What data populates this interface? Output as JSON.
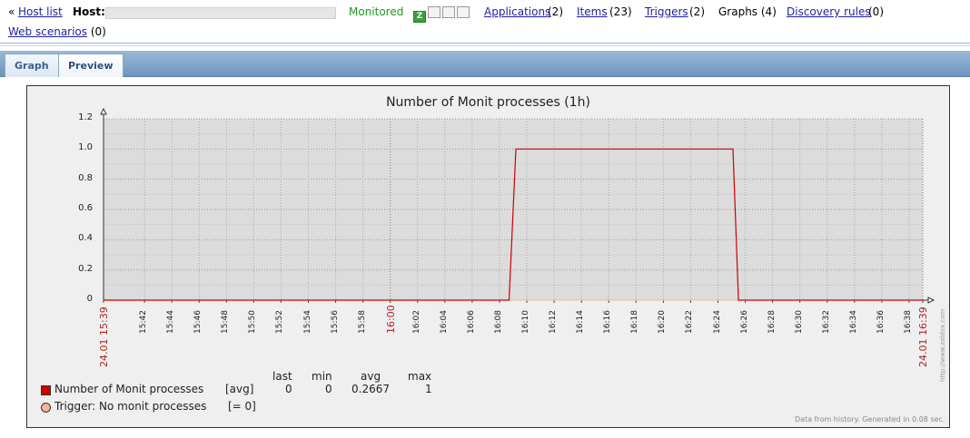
{
  "host_header": {
    "host_list_prefix": "«",
    "host_list_label": "Host list",
    "host_label": "Host:",
    "host_name": "",
    "status": "Monitored",
    "availability": [
      {
        "letter": "Z",
        "state": "available"
      },
      {
        "letter": "",
        "state": "unknown"
      },
      {
        "letter": "",
        "state": "unknown"
      },
      {
        "letter": "",
        "state": "unknown"
      }
    ],
    "applications_label": "Applications",
    "applications_count": "(2)",
    "items_label": "Items",
    "items_count": "(23)",
    "triggers_label": "Triggers",
    "triggers_count": "(2)",
    "graphs_label": "Graphs (4)",
    "discovery_label": "Discovery rules",
    "discovery_count": "(0)",
    "web_label": "Web scenarios",
    "web_count": "(0)"
  },
  "tabs": [
    {
      "label": "Graph",
      "active": false
    },
    {
      "label": "Preview",
      "active": true
    }
  ],
  "graph": {
    "title": "Number of Monit processes (1h)",
    "legend_headers": {
      "last": "last",
      "min": "min",
      "avg": "avg",
      "max": "max"
    },
    "items": [
      {
        "name": "Number of Monit processes",
        "func": "[avg]",
        "last": "0",
        "min": "0",
        "avg": "0.2667",
        "max": "1",
        "color": "#cc0000"
      }
    ],
    "triggers": [
      {
        "name": "Trigger: No monit processes",
        "condition": "[= 0]",
        "color": "#f5b59e"
      }
    ],
    "footer": "Data from history. Generated in 0.08 sec.",
    "watermark": "http://www.zabbix.com"
  },
  "chart_data": {
    "type": "line",
    "title": "Number of Monit processes (1h)",
    "xlabel": "",
    "ylabel": "",
    "ylim": [
      0,
      1.2
    ],
    "y_ticks": [
      "0",
      "0.2",
      "0.4",
      "0.6",
      "0.8",
      "1.0",
      "1.2"
    ],
    "x_ticks": [
      "24.01 15:39",
      "15:42",
      "15:44",
      "15:46",
      "15:48",
      "15:50",
      "15:52",
      "15:54",
      "15:56",
      "15:58",
      "16:00",
      "16:02",
      "16:04",
      "16:06",
      "16:08",
      "16:10",
      "16:12",
      "16:14",
      "16:16",
      "16:18",
      "16:20",
      "16:22",
      "16:24",
      "16:26",
      "16:28",
      "16:30",
      "16:32",
      "16:34",
      "16:36",
      "16:38",
      "24.01 16:39"
    ],
    "x_range": [
      "15:39",
      "16:39"
    ],
    "grid": true,
    "series": [
      {
        "name": "Number of Monit processes",
        "color": "#cc0000",
        "x": [
          "15:39",
          "16:08.7",
          "16:09.2",
          "16:25.1",
          "16:25.5",
          "16:39"
        ],
        "values": [
          0,
          0,
          1,
          1,
          0,
          0
        ]
      }
    ],
    "trigger_line": {
      "name": "Trigger: No monit processes",
      "value": 0,
      "color": "#f5b59e"
    }
  }
}
